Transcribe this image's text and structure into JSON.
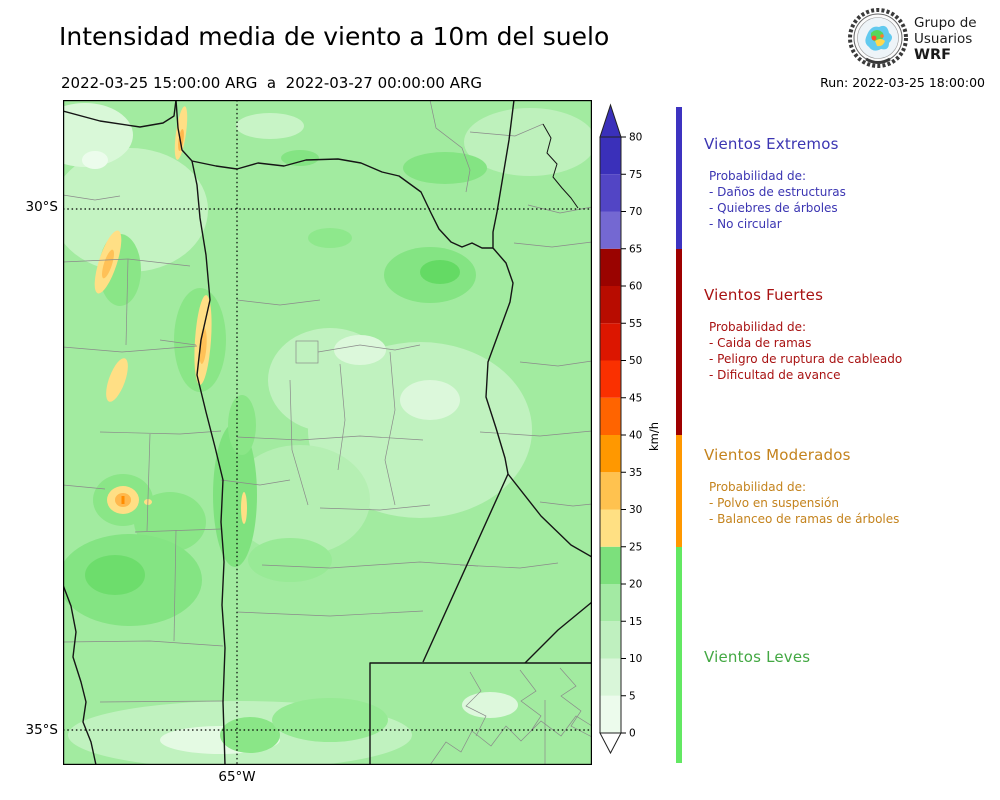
{
  "header": {
    "title": "Intensidad media de viento a 10m del suelo",
    "date_range": "2022-03-25 15:00:00 ARG  a  2022-03-27 00:00:00 ARG",
    "run_label": "Run: 2022-03-25 18:00:00",
    "logo": {
      "line1": "Grupo de",
      "line2": "Usuarios",
      "line3": "WRF"
    }
  },
  "map": {
    "lat_top_label": "30°S",
    "lat_bottom_label": "35°S",
    "lon_label": "65°W"
  },
  "colorbar": {
    "unit": "km/h",
    "ticks": [
      0,
      5,
      10,
      15,
      20,
      25,
      30,
      35,
      40,
      45,
      50,
      55,
      60,
      65,
      70,
      75,
      80
    ],
    "over_color": "#3a30ba",
    "under_color": "#ffffff",
    "segments": [
      {
        "from": 0,
        "to": 5,
        "color": "#ecfbec"
      },
      {
        "from": 5,
        "to": 10,
        "color": "#d9f6d9"
      },
      {
        "from": 10,
        "to": 15,
        "color": "#bff0bf"
      },
      {
        "from": 15,
        "to": 20,
        "color": "#a3eaa3"
      },
      {
        "from": 20,
        "to": 25,
        "color": "#7ce07c"
      },
      {
        "from": 25,
        "to": 30,
        "color": "#ffe083"
      },
      {
        "from": 30,
        "to": 35,
        "color": "#ffc24f"
      },
      {
        "from": 35,
        "to": 40,
        "color": "#ff9800"
      },
      {
        "from": 40,
        "to": 45,
        "color": "#ff6400"
      },
      {
        "from": 45,
        "to": 50,
        "color": "#fa3000"
      },
      {
        "from": 50,
        "to": 55,
        "color": "#dc1600"
      },
      {
        "from": 55,
        "to": 60,
        "color": "#b80c00"
      },
      {
        "from": 60,
        "to": 65,
        "color": "#9a0300"
      },
      {
        "from": 65,
        "to": 70,
        "color": "#7468d2"
      },
      {
        "from": 70,
        "to": 75,
        "color": "#5245c5"
      },
      {
        "from": 75,
        "to": 80,
        "color": "#3a30ba"
      }
    ]
  },
  "categories": [
    {
      "name": "Vientos Extremos",
      "color": "#3b35b2",
      "strip_color": "#3d33c0",
      "range_kmh": [
        65,
        null
      ],
      "prob_title": "Probabilidad de:",
      "items": [
        "- Daños de estructuras",
        "- Quiebres de árboles",
        "- No circular"
      ]
    },
    {
      "name": "Vientos Fuertes",
      "color": "#a81212",
      "strip_color": "#9e0000",
      "range_kmh": [
        40,
        65
      ],
      "prob_title": "Probabilidad de:",
      "items": [
        "- Caida de ramas",
        "- Peligro de ruptura de cableado",
        "- Dificultad de avance"
      ]
    },
    {
      "name": "Vientos Moderados",
      "color": "#c4831d",
      "strip_color": "#ff9800",
      "range_kmh": [
        25,
        40
      ],
      "prob_title": "Probabilidad de:",
      "items": [
        "- Polvo en suspensión",
        "- Balanceo de ramas de árboles"
      ]
    },
    {
      "name": "Vientos Leves",
      "color": "#43a843",
      "strip_color": "#63e863",
      "range_kmh": [
        0,
        25
      ],
      "prob_title": "",
      "items": []
    }
  ]
}
